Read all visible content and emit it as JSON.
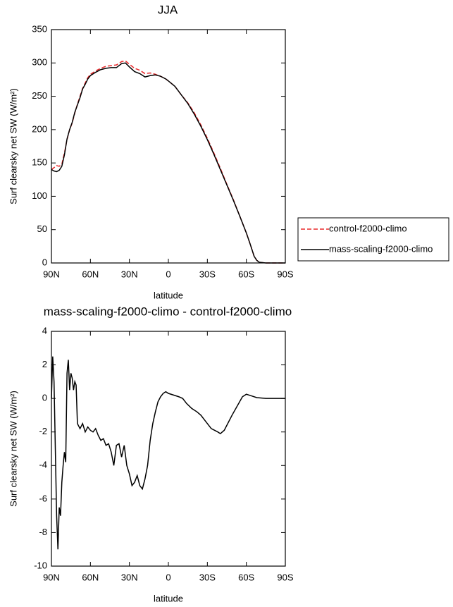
{
  "chart_data": [
    {
      "type": "line",
      "title": "JJA",
      "xlabel": "latitude",
      "ylabel": "Surf clearsky net SW (W/m²)",
      "xlim": [
        90,
        -90
      ],
      "ylim": [
        0,
        350
      ],
      "xticks": [
        {
          "value": 90,
          "label": "90N"
        },
        {
          "value": 60,
          "label": "60N"
        },
        {
          "value": 30,
          "label": "30N"
        },
        {
          "value": 0,
          "label": "0"
        },
        {
          "value": -30,
          "label": "30S"
        },
        {
          "value": -60,
          "label": "60S"
        },
        {
          "value": -90,
          "label": "90S"
        }
      ],
      "yticks": [
        0,
        50,
        100,
        150,
        200,
        250,
        300,
        350
      ],
      "legend": "outside-right",
      "x": [
        90,
        88,
        86,
        84,
        82,
        80,
        78,
        76,
        74,
        72,
        70,
        68,
        66,
        64,
        62,
        60,
        56,
        52,
        48,
        44,
        40,
        36,
        33,
        30,
        26,
        22,
        18,
        14,
        10,
        6,
        2,
        0,
        -5,
        -10,
        -15,
        -20,
        -25,
        -30,
        -35,
        -40,
        -45,
        -50,
        -55,
        -60,
        -63,
        -66,
        -68,
        -70,
        -75,
        -80,
        -85,
        -90
      ],
      "series": [
        {
          "name": "control-f2000-climo",
          "color": "#e8282a",
          "dashed": true,
          "values": [
            140,
            143,
            146,
            145,
            148,
            165,
            185,
            200,
            210,
            225,
            238,
            250,
            262,
            270,
            278,
            283,
            288,
            292,
            295,
            296,
            297,
            302,
            303,
            298,
            292,
            289,
            284,
            285,
            283,
            280,
            276,
            273,
            265,
            252,
            240,
            225,
            207,
            187,
            165,
            142,
            118,
            95,
            70,
            45,
            28,
            10,
            4,
            1,
            0,
            0,
            0,
            0
          ]
        },
        {
          "name": "mass-scaling-f2000-climo",
          "color": "#000000",
          "dashed": false,
          "values": [
            140,
            138,
            137,
            139,
            145,
            162,
            186,
            200,
            211,
            226,
            237,
            248,
            261,
            268,
            276,
            281,
            286,
            290,
            292,
            293,
            293,
            299,
            300,
            294,
            287,
            284,
            279,
            281,
            282,
            280,
            276,
            273,
            265,
            252,
            239,
            223,
            205,
            185,
            163,
            140,
            117,
            94,
            70,
            45,
            28,
            10,
            4,
            1,
            0,
            0,
            0,
            0
          ]
        }
      ]
    },
    {
      "type": "line",
      "title": "mass-scaling-f2000-climo - control-f2000-climo",
      "xlabel": "latitude",
      "ylabel": "Surf clearsky net SW (W/m²)",
      "xlim": [
        90,
        -90
      ],
      "ylim": [
        -10,
        4
      ],
      "xticks": [
        {
          "value": 90,
          "label": "90N"
        },
        {
          "value": 60,
          "label": "60N"
        },
        {
          "value": 30,
          "label": "30N"
        },
        {
          "value": 0,
          "label": "0"
        },
        {
          "value": -30,
          "label": "30S"
        },
        {
          "value": -60,
          "label": "60S"
        },
        {
          "value": -90,
          "label": "90S"
        }
      ],
      "yticks": [
        -10,
        -8,
        -6,
        -4,
        -2,
        0,
        2,
        4
      ],
      "x": [
        90,
        89,
        88,
        87,
        86,
        85,
        84,
        83,
        82,
        81,
        80,
        79,
        78,
        77,
        76,
        75,
        74,
        73,
        72,
        71,
        70,
        68,
        66,
        64,
        62,
        60,
        58,
        56,
        54,
        52,
        50,
        48,
        46,
        44,
        42,
        40,
        38,
        36,
        34,
        32,
        30,
        28,
        26,
        24,
        22,
        20,
        18,
        16,
        14,
        12,
        10,
        8,
        6,
        4,
        2,
        0,
        -4,
        -8,
        -11,
        -14,
        -18,
        -22,
        -25,
        -28,
        -33,
        -38,
        -40,
        -43,
        -49,
        -57,
        -60,
        -64,
        -68,
        -75,
        -90
      ],
      "series": [
        {
          "name": "mass-scaling-f2000-climo - control-f2000-climo",
          "color": "#000000",
          "dashed": false,
          "values": [
            0,
            2.5,
            1,
            -3,
            -7,
            -9,
            -6.5,
            -7,
            -5,
            -4,
            -3.2,
            -3.8,
            1.5,
            2.3,
            0.5,
            1.5,
            1.2,
            0.5,
            1.0,
            0.8,
            -1.5,
            -1.8,
            -1.5,
            -2.0,
            -1.7,
            -1.9,
            -2.0,
            -1.8,
            -2.2,
            -2.5,
            -2.4,
            -2.8,
            -2.7,
            -3.2,
            -4.0,
            -2.8,
            -2.7,
            -3.5,
            -2.8,
            -4.0,
            -4.5,
            -5.2,
            -5.0,
            -4.6,
            -5.2,
            -5.4,
            -4.8,
            -4.0,
            -2.5,
            -1.5,
            -0.8,
            -0.2,
            0.1,
            0.3,
            0.4,
            0.3,
            0.2,
            0.1,
            0.0,
            -0.3,
            -0.6,
            -0.8,
            -1.0,
            -1.3,
            -1.8,
            -2.0,
            -2.1,
            -1.9,
            -1.0,
            0.1,
            0.25,
            0.15,
            0.05,
            0,
            0
          ]
        }
      ]
    }
  ]
}
